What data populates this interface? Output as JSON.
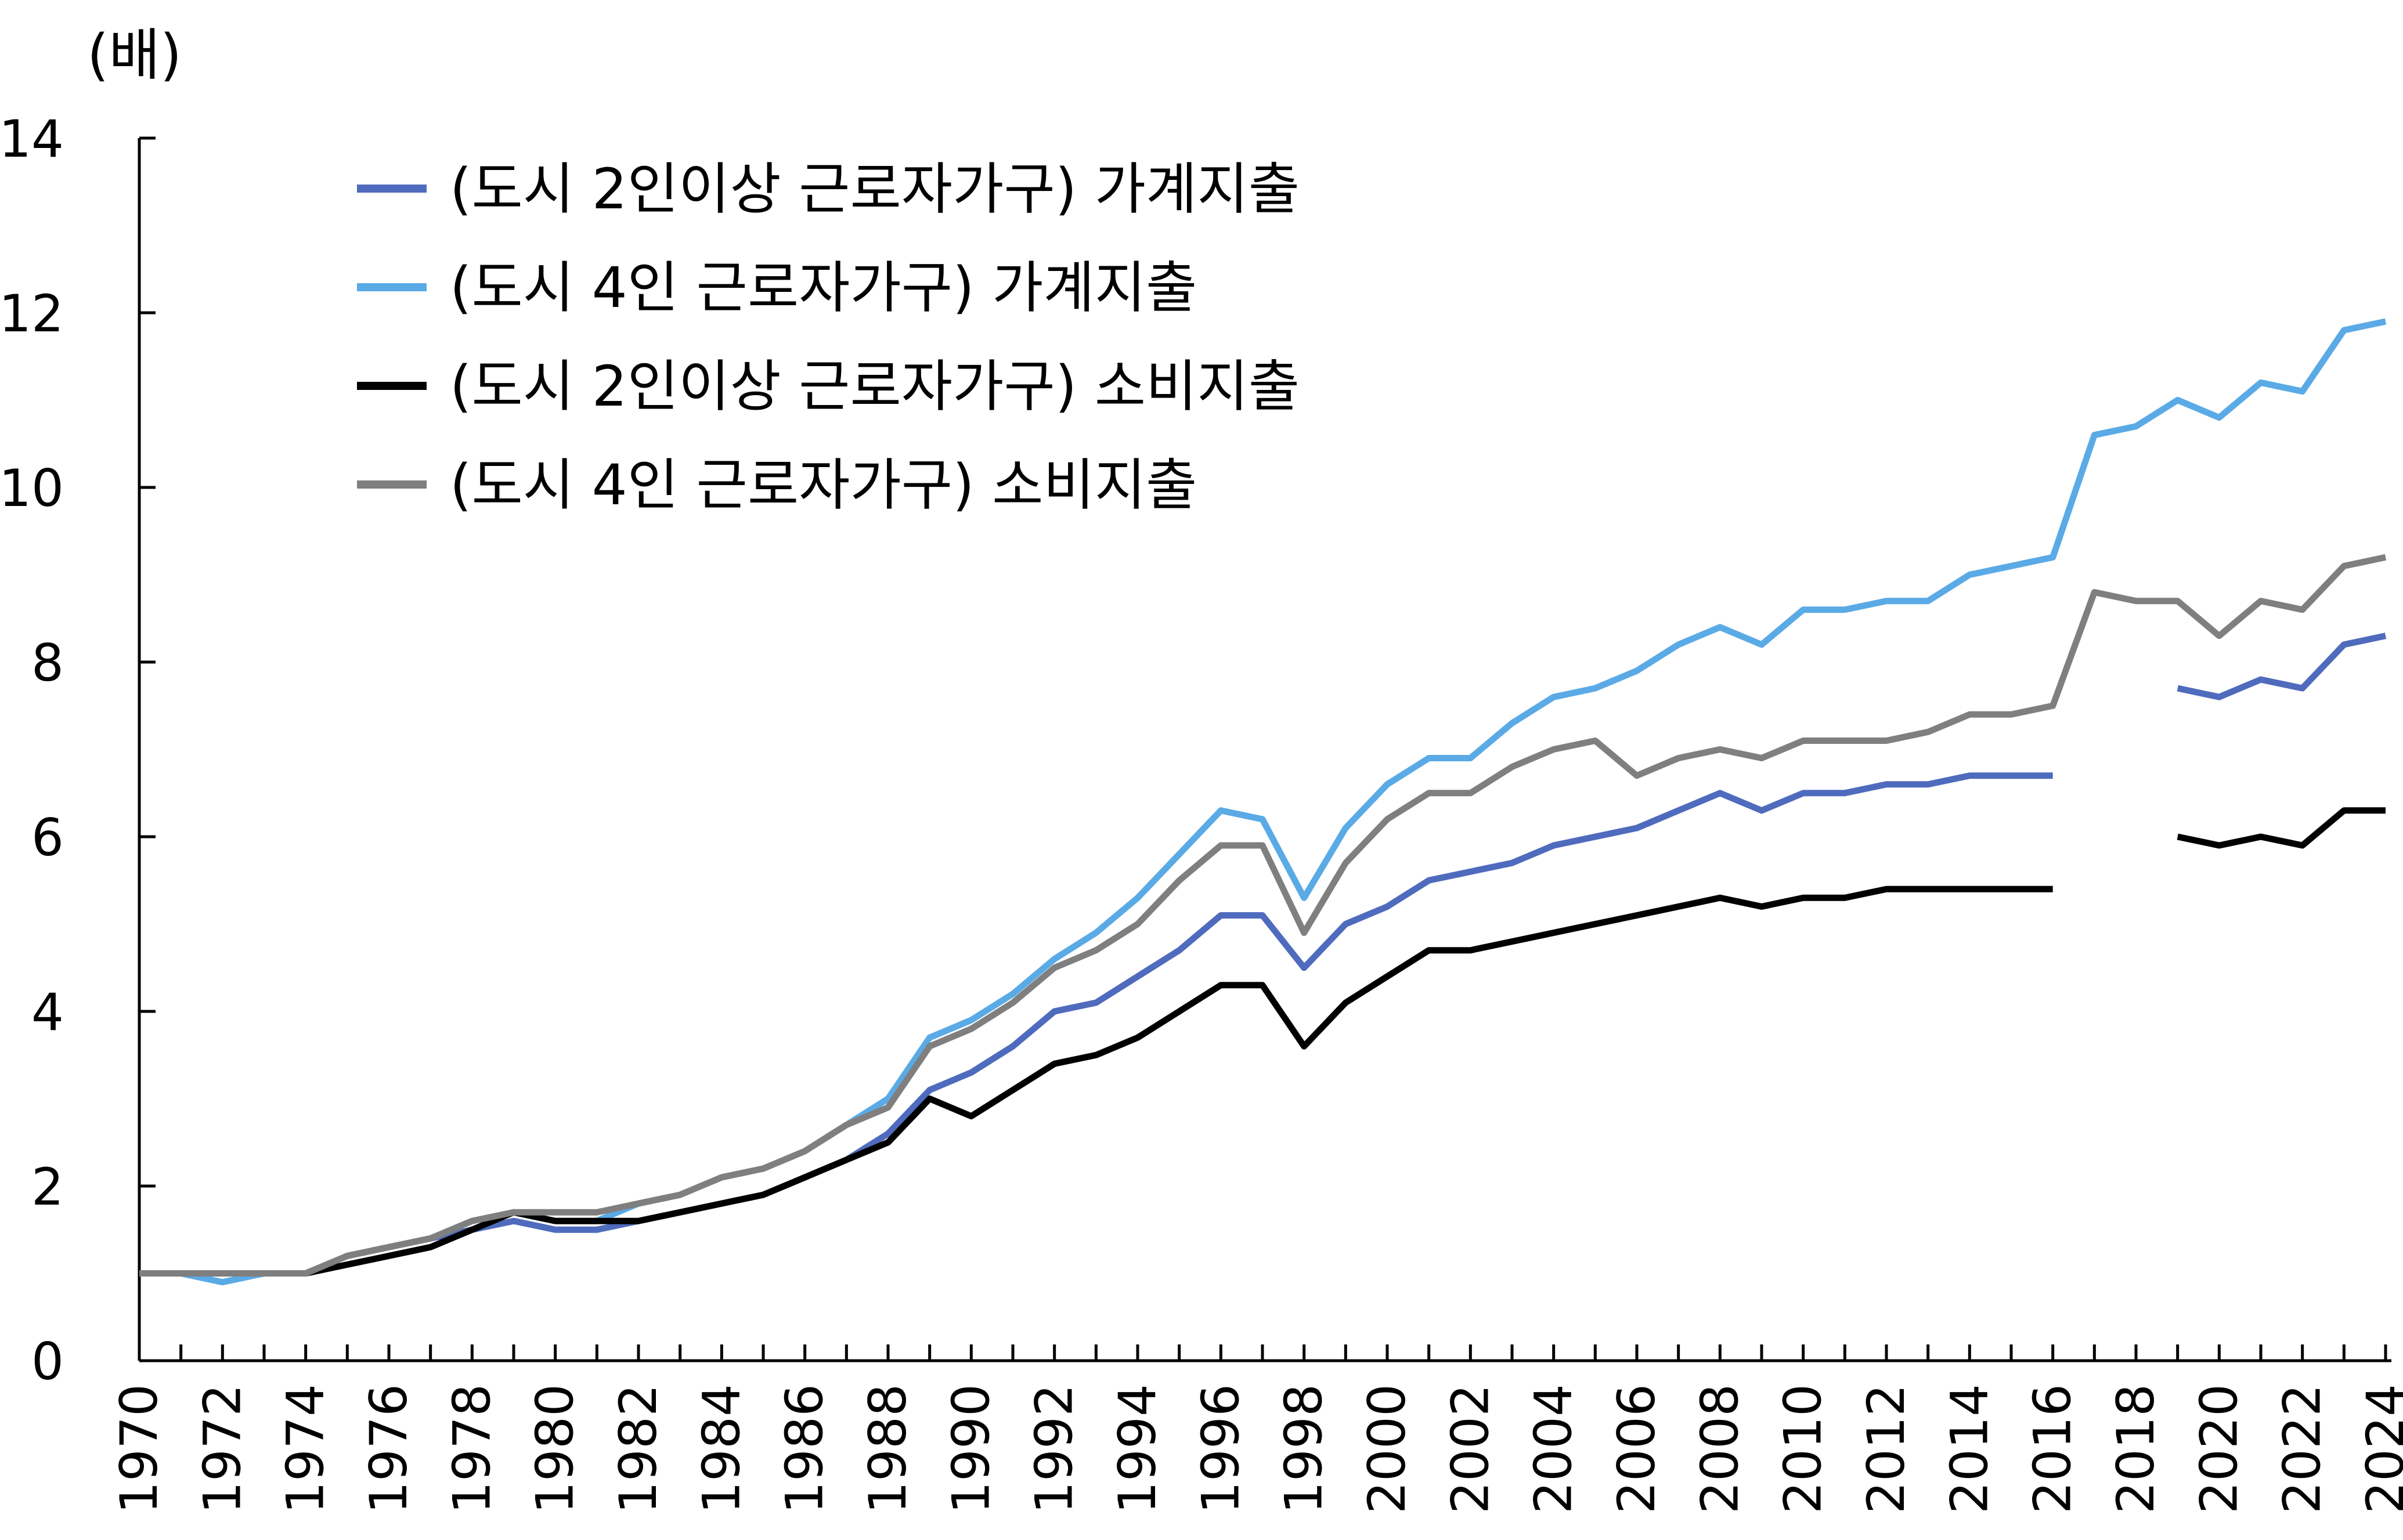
{
  "chart_data": {
    "type": "line",
    "ylabel": "(배)",
    "ylim": [
      0,
      14
    ],
    "yticks": [
      "0",
      "2",
      "4",
      "6",
      "8",
      "10",
      "12",
      "14"
    ],
    "xlim": [
      1970,
      2024
    ],
    "xticks": [
      "1970",
      "1972",
      "1974",
      "1976",
      "1978",
      "1980",
      "1982",
      "1984",
      "1986",
      "1988",
      "1990",
      "1992",
      "1994",
      "1996",
      "1998",
      "2000",
      "2002",
      "2004",
      "2006",
      "2008",
      "2010",
      "2012",
      "2014",
      "2016",
      "2018",
      "2020",
      "2022",
      "2024"
    ],
    "legend_position": "top-left",
    "grid": false,
    "x": [
      1970,
      1971,
      1972,
      1973,
      1974,
      1975,
      1976,
      1977,
      1978,
      1979,
      1980,
      1981,
      1982,
      1983,
      1984,
      1985,
      1986,
      1987,
      1988,
      1989,
      1990,
      1991,
      1992,
      1993,
      1994,
      1995,
      1996,
      1997,
      1998,
      1999,
      2000,
      2001,
      2002,
      2003,
      2004,
      2005,
      2006,
      2007,
      2008,
      2009,
      2010,
      2011,
      2012,
      2013,
      2014,
      2015,
      2016,
      2017,
      2018,
      2019,
      2020,
      2021,
      2022,
      2023,
      2024
    ],
    "series": [
      {
        "name": "(도시 2인이상 근로자가구) 가계지출",
        "color": "#4f6bbd",
        "values": [
          1,
          1,
          1,
          1,
          1,
          1.2,
          1.3,
          1.4,
          1.5,
          1.6,
          1.5,
          1.5,
          1.6,
          1.7,
          1.8,
          1.9,
          2.1,
          2.3,
          2.6,
          3.1,
          3.3,
          3.6,
          4.0,
          4.1,
          4.4,
          4.7,
          5.1,
          5.1,
          4.5,
          5.0,
          5.2,
          5.5,
          5.6,
          5.7,
          5.9,
          6.0,
          6.1,
          6.3,
          6.5,
          6.3,
          6.5,
          6.5,
          6.6,
          6.6,
          6.7,
          6.7,
          6.7,
          null,
          null,
          7.7,
          7.6,
          7.8,
          7.7,
          8.2,
          8.3
        ]
      },
      {
        "name": "(도시 4인 근로자가구) 가계지출",
        "color": "#5aaae6",
        "values": [
          1,
          1,
          0.9,
          1,
          1,
          1.2,
          1.3,
          1.4,
          1.6,
          1.7,
          1.6,
          1.6,
          1.8,
          1.9,
          2.1,
          2.2,
          2.4,
          2.7,
          3.0,
          3.7,
          3.9,
          4.2,
          4.6,
          4.9,
          5.3,
          5.8,
          6.3,
          6.2,
          5.3,
          6.1,
          6.6,
          6.9,
          6.9,
          7.3,
          7.6,
          7.7,
          7.9,
          8.2,
          8.4,
          8.2,
          8.6,
          8.6,
          8.7,
          8.7,
          9.0,
          9.1,
          9.2,
          10.6,
          10.7,
          11.0,
          10.8,
          11.2,
          11.1,
          11.8,
          11.9
        ]
      },
      {
        "name": "(도시 2인이상 근로자가구) 소비지출",
        "color": "#000000",
        "values": [
          1,
          1,
          1,
          1,
          1,
          1.1,
          1.2,
          1.3,
          1.5,
          1.7,
          1.6,
          1.6,
          1.6,
          1.7,
          1.8,
          1.9,
          2.1,
          2.3,
          2.5,
          3.0,
          2.8,
          3.1,
          3.4,
          3.5,
          3.7,
          4.0,
          4.3,
          4.3,
          3.6,
          4.1,
          4.4,
          4.7,
          4.7,
          4.8,
          4.9,
          5.0,
          5.1,
          5.2,
          5.3,
          5.2,
          5.3,
          5.3,
          5.4,
          5.4,
          5.4,
          5.4,
          5.4,
          null,
          null,
          6.0,
          5.9,
          6.0,
          5.9,
          6.3,
          6.3
        ]
      },
      {
        "name": "(도시 4인 근로자가구) 소비지출",
        "color": "#7f7f7f",
        "values": [
          1,
          1,
          1,
          1,
          1,
          1.2,
          1.3,
          1.4,
          1.6,
          1.7,
          1.7,
          1.7,
          1.8,
          1.9,
          2.1,
          2.2,
          2.4,
          2.7,
          2.9,
          3.6,
          3.8,
          4.1,
          4.5,
          4.7,
          5.0,
          5.5,
          5.9,
          5.9,
          4.9,
          5.7,
          6.2,
          6.5,
          6.5,
          6.8,
          7.0,
          7.1,
          6.7,
          6.9,
          7.0,
          6.9,
          7.1,
          7.1,
          7.1,
          7.2,
          7.4,
          7.4,
          7.5,
          8.8,
          8.7,
          8.7,
          8.3,
          8.7,
          8.6,
          9.1,
          9.2
        ]
      }
    ]
  }
}
